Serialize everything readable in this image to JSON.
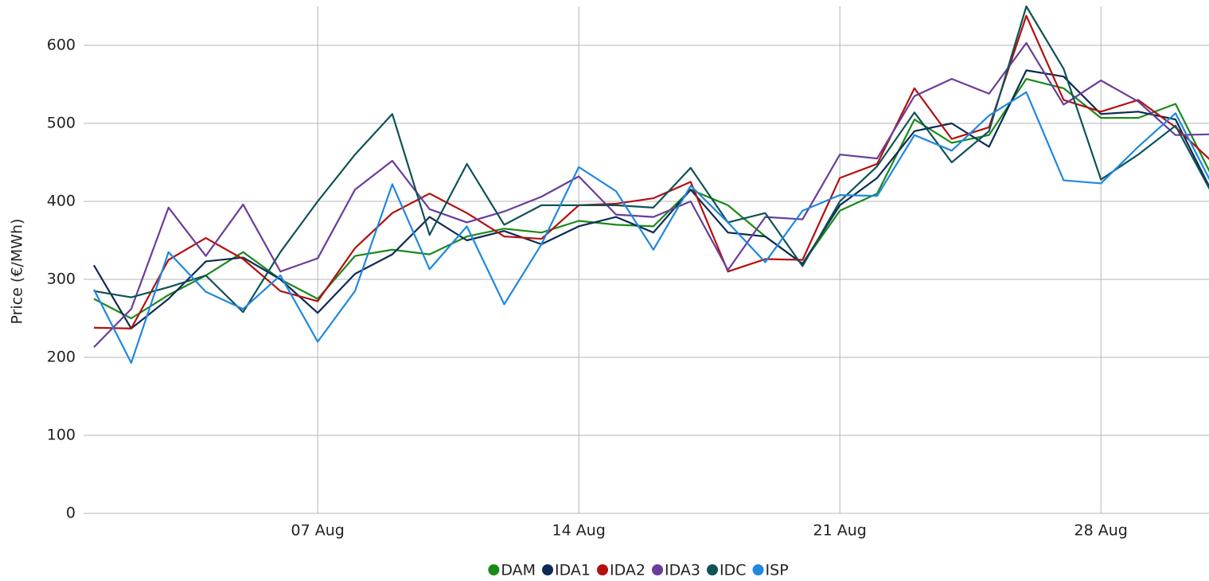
{
  "chart_data": {
    "type": "line",
    "y_label": "Price (€/MWh)",
    "categories": [
      null,
      null,
      null,
      null,
      null,
      null,
      "07 Aug",
      null,
      null,
      null,
      null,
      null,
      null,
      "14 Aug",
      null,
      null,
      null,
      null,
      null,
      null,
      "21 Aug",
      null,
      null,
      null,
      null,
      null,
      null,
      "28 Aug",
      null,
      null,
      null
    ],
    "ylim": [
      0,
      650
    ],
    "yticks": [
      0,
      100,
      200,
      300,
      400,
      500,
      600
    ],
    "grid": true,
    "legend": "bottom",
    "series": [
      {
        "name": "DAM",
        "color": "#1a8a1a",
        "values": [
          275,
          250,
          280,
          305,
          335,
          300,
          275,
          330,
          338,
          332,
          355,
          365,
          360,
          375,
          370,
          368,
          415,
          395,
          355,
          320,
          388,
          410,
          505,
          475,
          485,
          557,
          545,
          507,
          507,
          525,
          430
        ]
      },
      {
        "name": "IDA1",
        "color": "#0d2b55",
        "values": [
          318,
          237,
          275,
          323,
          328,
          300,
          257,
          307,
          332,
          380,
          350,
          362,
          345,
          368,
          380,
          360,
          415,
          360,
          355,
          320,
          395,
          430,
          490,
          500,
          470,
          568,
          560,
          512,
          515,
          505,
          410
        ]
      },
      {
        "name": "IDA2",
        "color": "#b31010",
        "values": [
          238,
          237,
          325,
          353,
          326,
          285,
          272,
          340,
          385,
          410,
          385,
          355,
          352,
          395,
          397,
          404,
          425,
          310,
          326,
          325,
          430,
          448,
          545,
          480,
          495,
          638,
          530,
          515,
          530,
          495,
          450
        ]
      },
      {
        "name": "IDA3",
        "color": "#6a3d9a",
        "values": [
          213,
          262,
          392,
          330,
          396,
          310,
          327,
          415,
          452,
          390,
          373,
          387,
          406,
          432,
          383,
          380,
          400,
          312,
          380,
          377,
          460,
          455,
          535,
          557,
          538,
          603,
          524,
          555,
          528,
          485,
          486
        ]
      },
      {
        "name": "IDC",
        "color": "#0f5257",
        "values": [
          285,
          277,
          290,
          305,
          258,
          335,
          400,
          460,
          512,
          357,
          448,
          370,
          395,
          395,
          395,
          392,
          443,
          373,
          385,
          317,
          400,
          445,
          514,
          450,
          490,
          650,
          570,
          428,
          460,
          497,
          408
        ]
      },
      {
        "name": "ISP",
        "color": "#1f88e0",
        "values": [
          287,
          193,
          335,
          284,
          262,
          305,
          220,
          285,
          422,
          313,
          368,
          268,
          345,
          444,
          413,
          338,
          420,
          373,
          322,
          388,
          408,
          407,
          485,
          465,
          510,
          540,
          427,
          423,
          470,
          513,
          420
        ]
      }
    ]
  }
}
